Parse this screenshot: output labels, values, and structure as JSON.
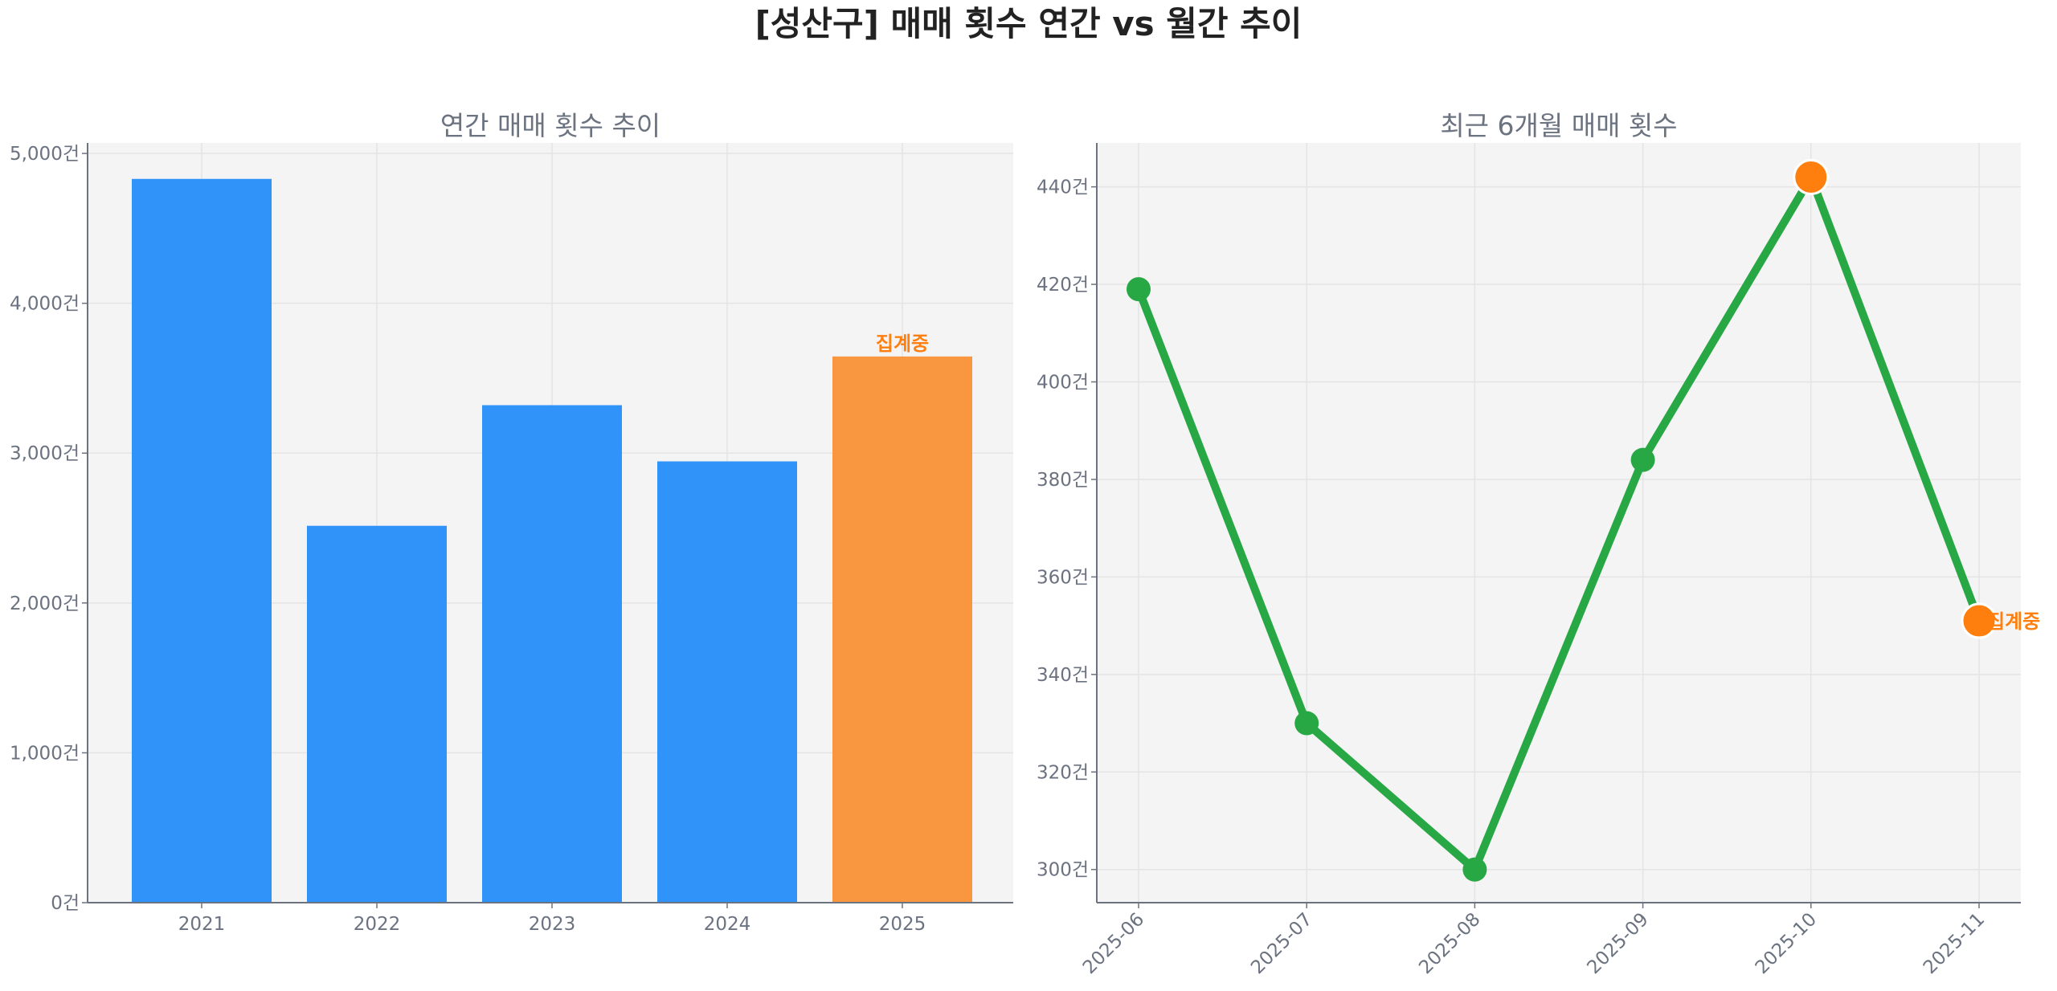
{
  "title": "[성산구] 매매 횟수 연간 vs 월간 추이",
  "chart_data": [
    {
      "type": "bar",
      "title": "연간 매매 횟수 추이",
      "categories": [
        "2021",
        "2022",
        "2023",
        "2024",
        "2025"
      ],
      "values": [
        4830,
        2515,
        3320,
        2945,
        3645
      ],
      "colors": [
        "#3093fa",
        "#3093fa",
        "#3093fa",
        "#3093fa",
        "#f99741"
      ],
      "annotations": [
        {
          "category": "2025",
          "text": "집계중",
          "color": "#ff7f0e"
        }
      ],
      "yticks": [
        0,
        1000,
        2000,
        3000,
        4000,
        5000
      ],
      "ytick_labels": [
        "0건",
        "1,000건",
        "2,000건",
        "3,000건",
        "4,000건",
        "5,000건"
      ],
      "ylim": [
        0,
        5070
      ],
      "grid": true,
      "background": "#f4f4f4"
    },
    {
      "type": "line",
      "title": "최근 6개월 매매 횟수",
      "x": [
        "2025-06",
        "2025-07",
        "2025-08",
        "2025-09",
        "2025-10",
        "2025-11"
      ],
      "values": [
        419,
        330,
        300,
        384,
        442,
        351
      ],
      "line_color": "#28a745",
      "highlight_color": "#ff7f0e",
      "highlight_points": [
        "2025-10",
        "2025-11"
      ],
      "annotations": [
        {
          "x": "2025-11",
          "text": "집계중",
          "color": "#ff7f0e"
        }
      ],
      "yticks": [
        300,
        320,
        340,
        360,
        380,
        400,
        420,
        440
      ],
      "ytick_labels": [
        "300건",
        "320건",
        "340건",
        "360건",
        "380건",
        "400건",
        "420건",
        "440건"
      ],
      "ylim": [
        293.2,
        449
      ],
      "grid": true,
      "background": "#f4f4f4"
    }
  ]
}
